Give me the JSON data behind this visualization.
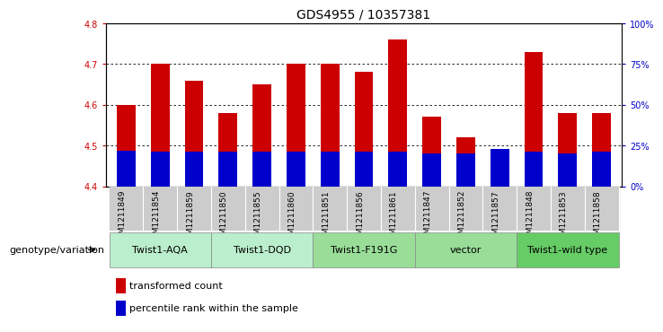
{
  "title": "GDS4955 / 10357381",
  "samples": [
    "GSM1211849",
    "GSM1211854",
    "GSM1211859",
    "GSM1211850",
    "GSM1211855",
    "GSM1211860",
    "GSM1211851",
    "GSM1211856",
    "GSM1211861",
    "GSM1211847",
    "GSM1211852",
    "GSM1211857",
    "GSM1211848",
    "GSM1211853",
    "GSM1211858"
  ],
  "bar_tops": [
    4.6,
    4.7,
    4.66,
    4.58,
    4.65,
    4.7,
    4.7,
    4.68,
    4.76,
    4.57,
    4.52,
    4.49,
    4.73,
    4.58,
    4.58
  ],
  "bar_bottom": 4.4,
  "percentile_tops": [
    4.487,
    4.486,
    4.486,
    4.484,
    4.486,
    4.485,
    4.485,
    4.485,
    4.484,
    4.481,
    4.481,
    4.492,
    4.485,
    4.481,
    4.484
  ],
  "bar_color": "#cc0000",
  "percentile_color": "#0000cc",
  "ylim": [
    4.4,
    4.8
  ],
  "yticks": [
    4.4,
    4.5,
    4.6,
    4.7,
    4.8
  ],
  "right_ytick_vals": [
    4.4,
    4.5,
    4.6,
    4.7,
    4.8
  ],
  "right_ylabels": [
    "0%",
    "25%",
    "50%",
    "75%",
    "100%"
  ],
  "groups": [
    {
      "label": "Twist1-AQA",
      "indices": [
        0,
        1,
        2
      ],
      "color": "#bbeecc"
    },
    {
      "label": "Twist1-DQD",
      "indices": [
        3,
        4,
        5
      ],
      "color": "#bbeecc"
    },
    {
      "label": "Twist1-F191G",
      "indices": [
        6,
        7,
        8
      ],
      "color": "#99dd99"
    },
    {
      "label": "vector",
      "indices": [
        9,
        10,
        11
      ],
      "color": "#99dd99"
    },
    {
      "label": "Twist1-wild type",
      "indices": [
        12,
        13,
        14
      ],
      "color": "#66cc66"
    }
  ],
  "genotype_label": "genotype/variation",
  "legend_red_label": "transformed count",
  "legend_blue_label": "percentile rank within the sample",
  "bar_width": 0.55,
  "red_tick_color": "#cc0000",
  "blue_tick_color": "#0000cc",
  "title_fontsize": 10,
  "tick_fontsize": 7,
  "sample_fontsize": 6.5,
  "group_label_fontsize": 8,
  "legend_fontsize": 8,
  "genotype_fontsize": 8
}
